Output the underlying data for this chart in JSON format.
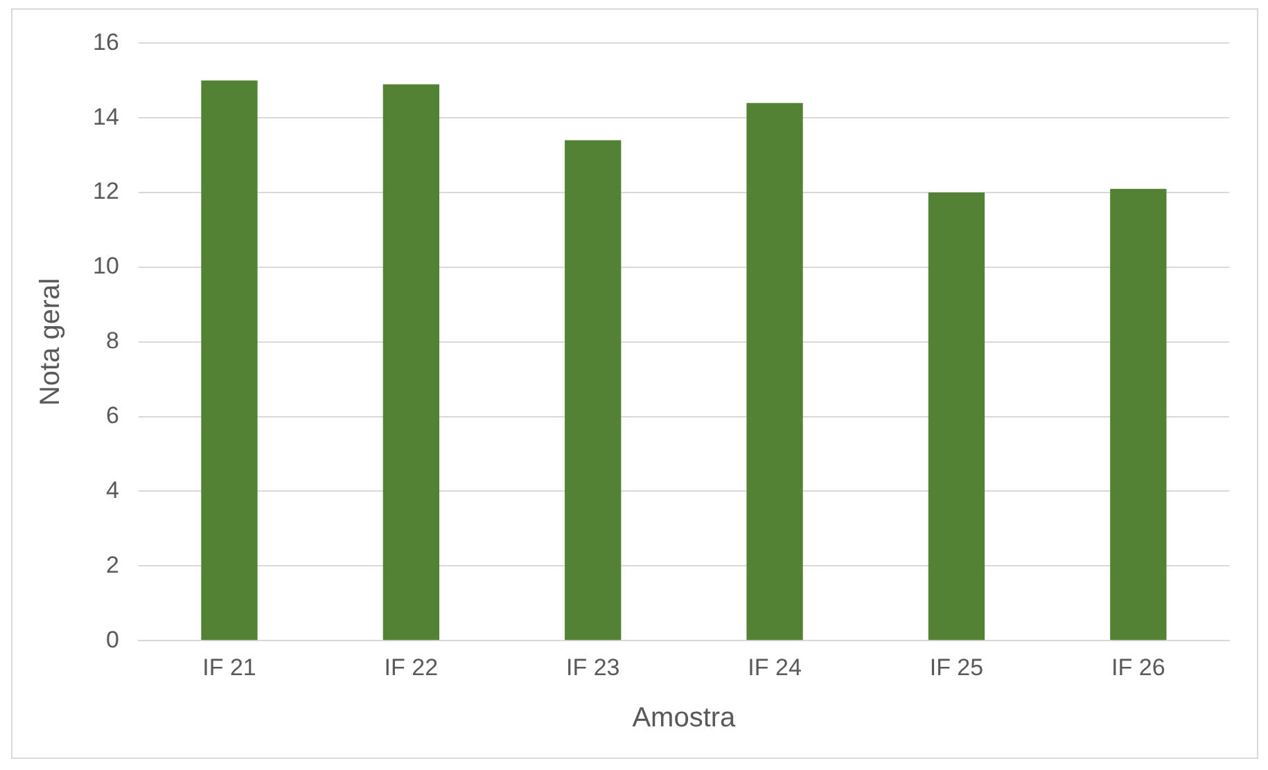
{
  "chart_data": {
    "type": "bar",
    "xlabel": "Amostra",
    "ylabel": "Nota geral",
    "categories": [
      "IF 21",
      "IF 22",
      "IF 23",
      "IF 24",
      "IF 25",
      "IF 26"
    ],
    "values": [
      15.0,
      14.9,
      13.4,
      14.4,
      12.0,
      12.1
    ],
    "color": "#548235",
    "ylim": [
      0,
      16
    ],
    "yticks": [
      0,
      2,
      4,
      6,
      8,
      10,
      12,
      14,
      16
    ],
    "grid": "y",
    "legend": false
  }
}
